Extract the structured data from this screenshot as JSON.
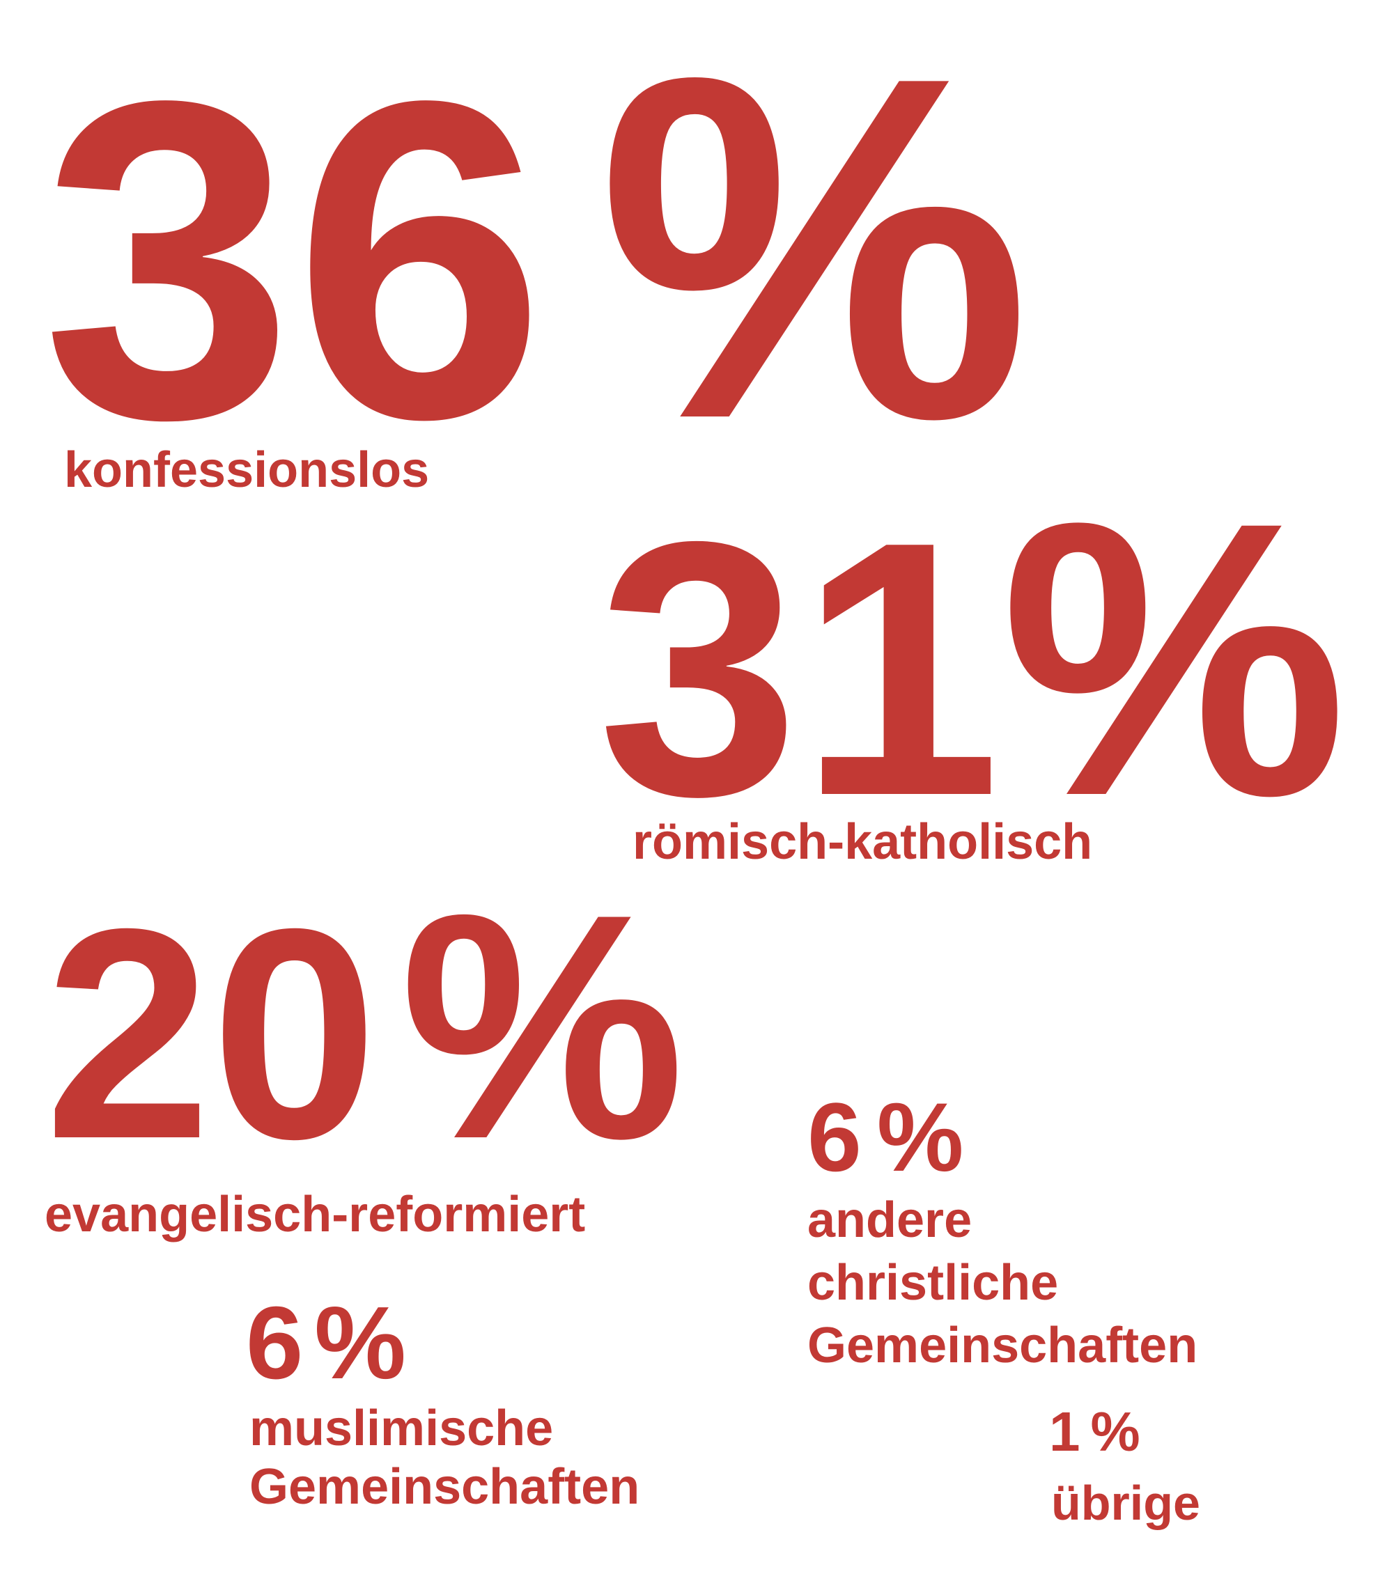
{
  "colors": {
    "accent": "#C23934",
    "background": "#FFFFFF"
  },
  "chart_data": {
    "type": "table",
    "title": "",
    "unit": "%",
    "categories": [
      "konfessionslos",
      "römisch-katholisch",
      "evangelisch-reformiert",
      "andere christliche Gemeinschaften",
      "muslimische Gemeinschaften",
      "übrige"
    ],
    "values": [
      36,
      31,
      20,
      6,
      6,
      1
    ],
    "layout_hint": "typographic proportional-text infographic, font size scales with value, no axes, no grid"
  },
  "stats": [
    {
      "value": "36",
      "unit": "%",
      "label": "konfessionslos"
    },
    {
      "value": "31",
      "unit": "%",
      "label": "römisch-katholisch"
    },
    {
      "value": "20",
      "unit": "%",
      "label": "evangelisch-reformiert"
    },
    {
      "value": "6",
      "unit": "%",
      "label": "andere\nchristliche\nGemeinschaften"
    },
    {
      "value": "6",
      "unit": "%",
      "label": "muslimische\nGemeinschaften"
    },
    {
      "value": "1",
      "unit": "%",
      "label": "übrige"
    }
  ]
}
